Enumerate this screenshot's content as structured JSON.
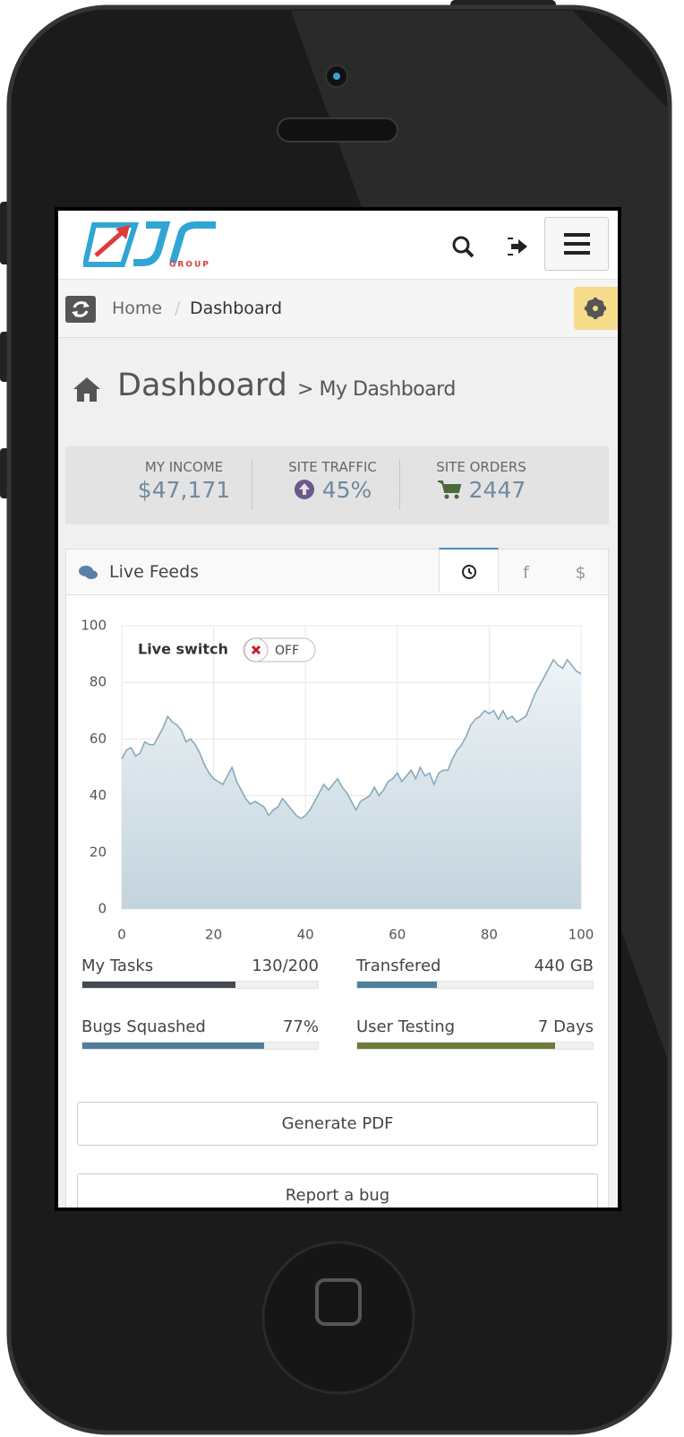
{
  "header": {
    "logo_subtext": "GROUP"
  },
  "breadcrumb": {
    "items": [
      "Home",
      "Dashboard"
    ],
    "separator": "/"
  },
  "page_title": {
    "title": "Dashboard",
    "subtitle": "> My Dashboard"
  },
  "stats": [
    {
      "label": "MY INCOME",
      "value": "$47,171"
    },
    {
      "label": "SITE TRAFFIC",
      "value": "45%"
    },
    {
      "label": "SITE ORDERS",
      "value": "2447"
    }
  ],
  "live_feeds": {
    "title": "Live Feeds",
    "tabs": [
      "f",
      "$"
    ]
  },
  "live_switch": {
    "label": "Live switch",
    "state": "OFF"
  },
  "chart_data": {
    "type": "area",
    "line_color": "#8aa9bb",
    "fill_top": "#eef3f6",
    "fill_bottom": "#c3d4de",
    "grid": true,
    "x": [
      0,
      1,
      2,
      3,
      4,
      5,
      6,
      7,
      8,
      9,
      10,
      11,
      12,
      13,
      14,
      15,
      16,
      17,
      18,
      19,
      20,
      21,
      22,
      23,
      24,
      25,
      26,
      27,
      28,
      29,
      30,
      31,
      32,
      33,
      34,
      35,
      36,
      37,
      38,
      39,
      40,
      41,
      42,
      43,
      44,
      45,
      46,
      47,
      48,
      49,
      50,
      51,
      52,
      53,
      54,
      55,
      56,
      57,
      58,
      59,
      60,
      61,
      62,
      63,
      64,
      65,
      66,
      67,
      68,
      69,
      70,
      71,
      72,
      73,
      74,
      75,
      76,
      77,
      78,
      79,
      80,
      81,
      82,
      83,
      84,
      85,
      86,
      87,
      88,
      89,
      90,
      91,
      92,
      93,
      94,
      95,
      96,
      97,
      98,
      99,
      100
    ],
    "values": [
      53,
      56,
      57,
      54,
      55,
      59,
      58,
      58,
      61,
      64,
      68,
      66,
      65,
      63,
      59,
      60,
      58,
      55,
      51,
      48,
      46,
      45,
      44,
      47,
      50,
      45,
      42,
      39,
      37,
      38,
      37,
      36,
      33,
      35,
      36,
      39,
      37,
      35,
      33,
      32,
      33,
      35,
      38,
      41,
      44,
      42,
      44,
      46,
      43,
      41,
      38,
      35,
      38,
      39,
      40,
      43,
      40,
      42,
      45,
      46,
      48,
      45,
      47,
      49,
      46,
      50,
      47,
      48,
      44,
      48,
      49,
      49,
      53,
      56,
      58,
      61,
      65,
      67,
      68,
      70,
      69,
      70,
      67,
      70,
      67,
      68,
      66,
      67,
      68,
      72,
      76,
      79,
      82,
      85,
      88,
      86,
      85,
      88,
      86,
      84,
      83
    ],
    "xlim": [
      0,
      100
    ],
    "ylim": [
      0,
      100
    ],
    "xticks": [
      0,
      20,
      40,
      60,
      80,
      100
    ],
    "yticks": [
      0,
      20,
      40,
      60,
      80,
      100
    ]
  },
  "progress": [
    {
      "label": "My Tasks",
      "value_label": "130/200",
      "percent": 65,
      "color": "#444a4f"
    },
    {
      "label": "Transfered",
      "value_label": "440 GB",
      "percent": 34,
      "color": "#4e7f9c"
    },
    {
      "label": "Bugs Squashed",
      "value_label": "77%",
      "percent": 77,
      "color": "#4e7f9c"
    },
    {
      "label": "User Testing",
      "value_label": "7 Days",
      "percent": 84,
      "color": "#6b7c36"
    }
  ],
  "buttons": [
    "Generate PDF",
    "Report a bug"
  ]
}
